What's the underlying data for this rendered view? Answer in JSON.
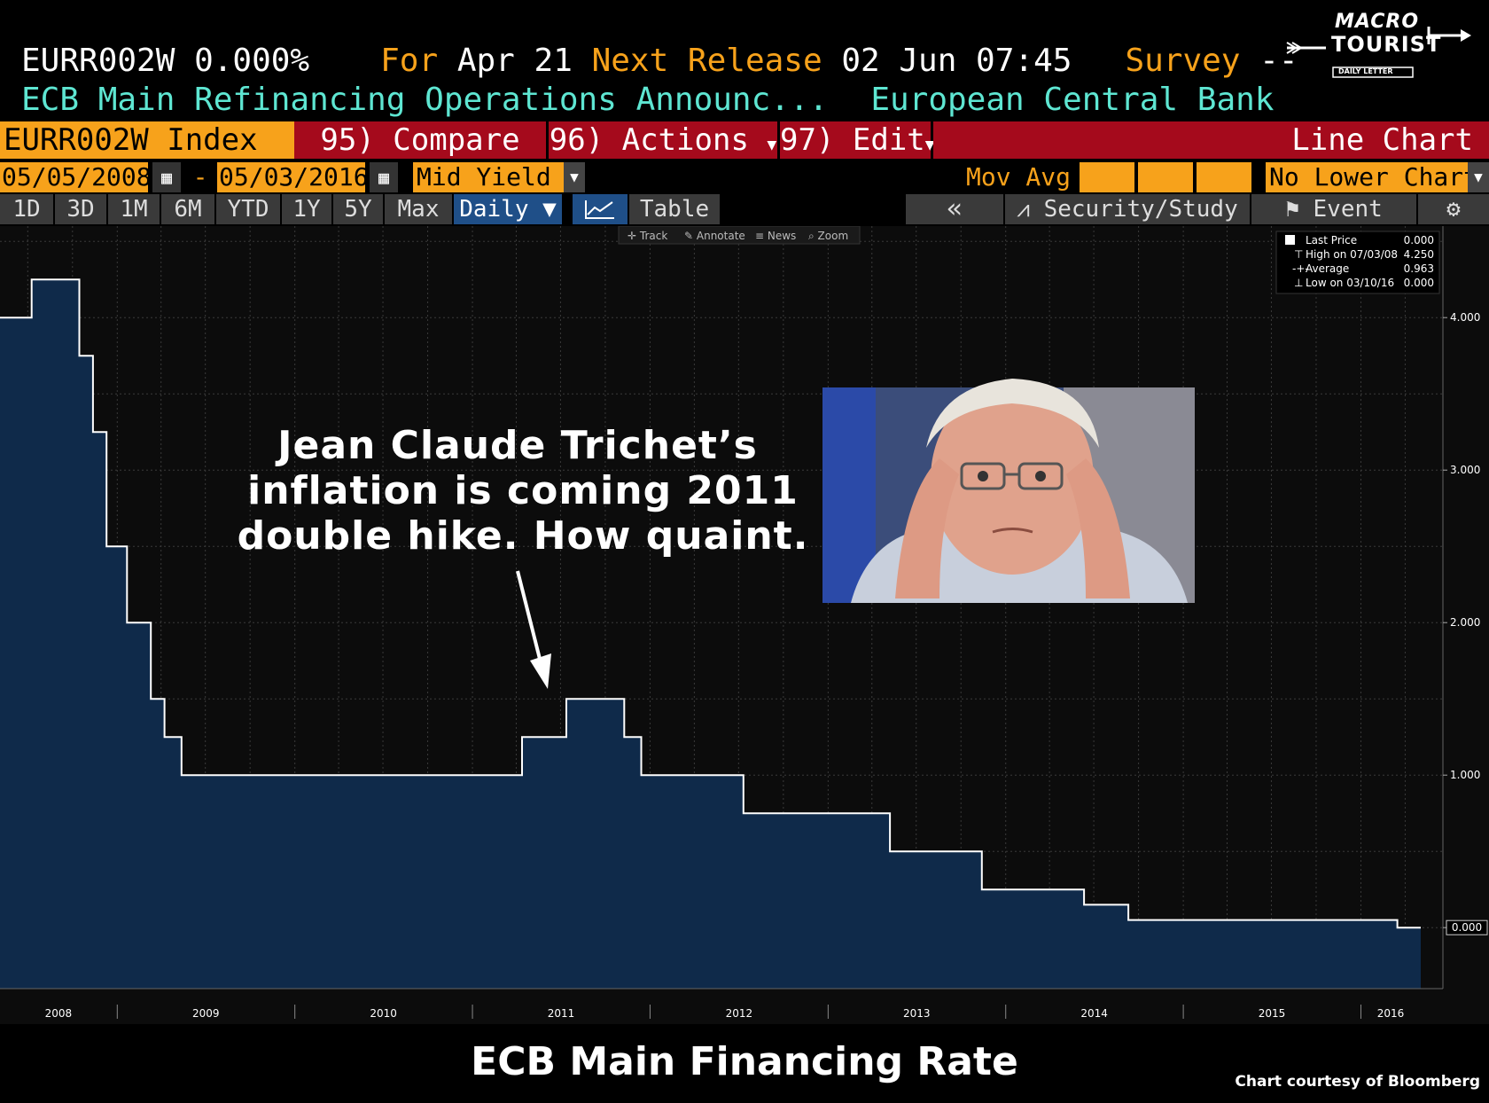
{
  "header": {
    "ticker_value": "EURR002W 0.000%",
    "for_label": "For",
    "for_value": "Apr 21",
    "next_release_label": "Next Release",
    "next_release_value": "02 Jun 07:45",
    "survey_label": "Survey",
    "survey_value": "--",
    "description": "ECB Main Refinancing Operations Announc...",
    "source": "European Central Bank"
  },
  "logo": {
    "line1": "MACRO",
    "line2": "TOURIST",
    "line3": "DAILY LETTER"
  },
  "toolbar": {
    "index_label": "EURR002W Index",
    "compare_label": "95) Compare",
    "actions_label": "96) Actions",
    "edit_label": "97) Edit",
    "chart_type_label": "Line Chart"
  },
  "range": {
    "start_date": "05/05/2008",
    "dash": "-",
    "end_date": "05/03/2016",
    "field": "Mid Yield",
    "mov_avg": "Mov Avg",
    "lower_chart": "No Lower Chart"
  },
  "periods": {
    "buttons": [
      "1D",
      "3D",
      "1M",
      "6M",
      "YTD",
      "1Y",
      "5Y",
      "Max"
    ],
    "frequency": "Daily ▼",
    "table_label": "Table",
    "back_label": "«",
    "security_study_label": "Security/Study",
    "event_label": "Event"
  },
  "chart_tools": [
    "Track",
    "Annotate",
    "News",
    "Zoom"
  ],
  "legend": {
    "last_price_label": "Last Price",
    "last_price_value": "0.000",
    "high_label": "High on 07/03/08",
    "high_value": "4.250",
    "average_label": "Average",
    "average_value": "0.963",
    "low_label": "Low on 03/10/16",
    "low_value": "0.000"
  },
  "annotation": {
    "line1": "Jean Claude Trichet’s",
    "line2": "inflation is coming 2011",
    "line3": "double hike.  How quaint."
  },
  "footer": {
    "title": "ECB Main Financing Rate",
    "credit": "Chart courtesy of Bloomberg"
  },
  "colors": {
    "accent": "#f7a21b",
    "teal": "#5ee6d2",
    "red": "#a50a1c",
    "chart_fill": "#0f2a4a",
    "line": "#ffffff"
  },
  "chart_data": {
    "type": "area",
    "title": "ECB Main Financing Rate",
    "xlabel": "",
    "ylabel": "",
    "x_ticks": [
      "2008",
      "2009",
      "2010",
      "2011",
      "2012",
      "2013",
      "2014",
      "2015",
      "2016"
    ],
    "y_ticks": [
      "4.000",
      "3.000",
      "2.000",
      "1.000",
      "0.000"
    ],
    "xlim": [
      "2008-05-05",
      "2016-05-03"
    ],
    "ylim": [
      -0.4,
      4.6
    ],
    "grid": true,
    "legend_position": "top-right",
    "series": [
      {
        "name": "",
        "step": true,
        "points": [
          [
            "2008-05-05",
            4.0
          ],
          [
            "2008-07-09",
            4.25
          ],
          [
            "2008-10-15",
            3.75
          ],
          [
            "2008-11-12",
            3.25
          ],
          [
            "2008-12-10",
            2.5
          ],
          [
            "2009-01-21",
            2.0
          ],
          [
            "2009-03-11",
            1.5
          ],
          [
            "2009-04-08",
            1.25
          ],
          [
            "2009-05-13",
            1.0
          ],
          [
            "2011-04-13",
            1.25
          ],
          [
            "2011-07-13",
            1.5
          ],
          [
            "2011-11-09",
            1.25
          ],
          [
            "2011-12-14",
            1.0
          ],
          [
            "2012-07-11",
            0.75
          ],
          [
            "2013-05-08",
            0.5
          ],
          [
            "2013-11-13",
            0.25
          ],
          [
            "2014-06-11",
            0.15
          ],
          [
            "2014-09-10",
            0.05
          ],
          [
            "2016-03-16",
            0.0
          ],
          [
            "2016-05-03",
            0.0
          ]
        ]
      }
    ]
  }
}
